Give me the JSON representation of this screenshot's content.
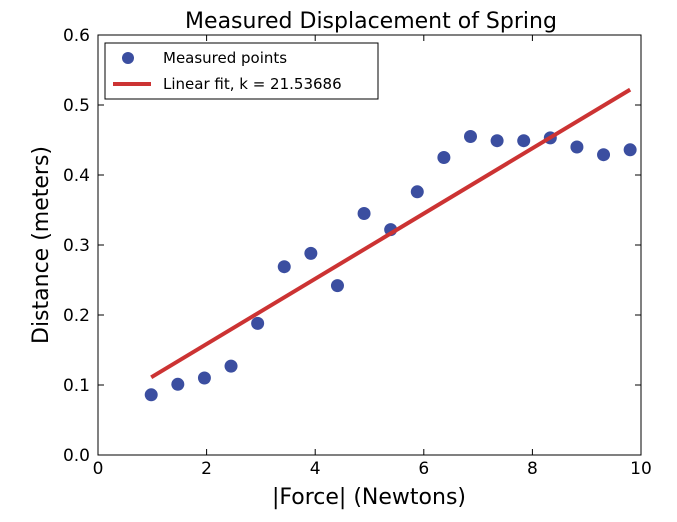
{
  "chart_data": {
    "type": "scatter",
    "title": "Measured Displacement of Spring",
    "xlabel": "|Force| (Newtons)",
    "ylabel": "Distance (meters)",
    "xlim": [
      0,
      10
    ],
    "ylim": [
      0.0,
      0.6
    ],
    "x_ticks": [
      "0",
      "2",
      "4",
      "6",
      "8",
      "10"
    ],
    "y_ticks": [
      "0.0",
      "0.1",
      "0.2",
      "0.3",
      "0.4",
      "0.5",
      "0.6"
    ],
    "grid": false,
    "legend_position": "top-left",
    "series": [
      {
        "name": "Measured points",
        "kind": "scatter",
        "color": "#3b4ea0",
        "x": [
          0.98,
          1.47,
          1.96,
          2.45,
          2.94,
          3.43,
          3.92,
          4.41,
          4.9,
          5.39,
          5.88,
          6.37,
          6.86,
          7.35,
          7.84,
          8.33,
          8.82,
          9.31,
          9.8
        ],
        "y": [
          0.086,
          0.101,
          0.11,
          0.127,
          0.188,
          0.269,
          0.288,
          0.242,
          0.345,
          0.322,
          0.376,
          0.425,
          0.455,
          0.449,
          0.449,
          0.453,
          0.44,
          0.429,
          0.436
        ]
      },
      {
        "name": "Linear fit, k = 21.53686",
        "kind": "line",
        "color": "#cc3333",
        "x": [
          0.98,
          9.8
        ],
        "y": [
          0.111,
          0.522
        ]
      }
    ]
  }
}
